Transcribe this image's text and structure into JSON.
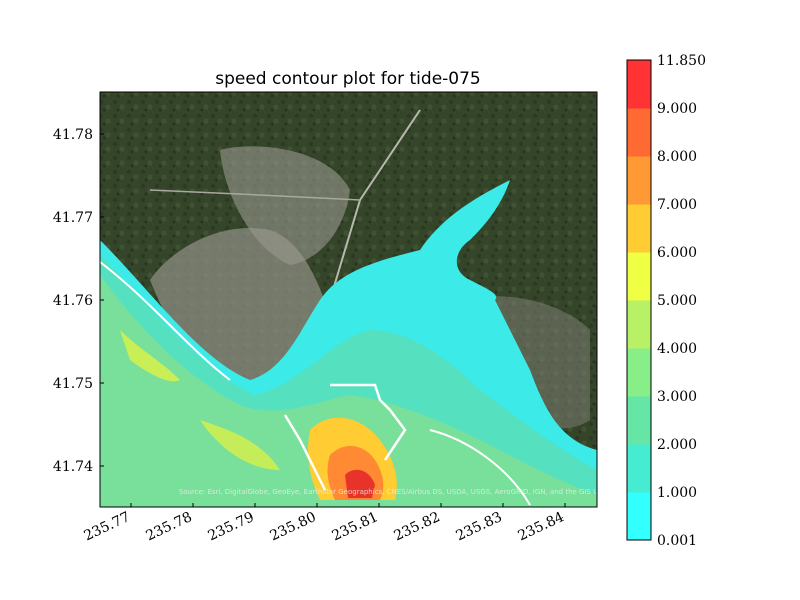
{
  "chart_data": {
    "type": "heatmap",
    "title": "speed contour plot for tide-075",
    "xlabel": "",
    "ylabel": "",
    "xlim": [
      235.765,
      235.845
    ],
    "ylim": [
      41.735,
      41.785
    ],
    "x_ticks": [
      "235.77",
      "235.78",
      "235.79",
      "235.80",
      "235.81",
      "235.82",
      "235.83",
      "235.84"
    ],
    "y_ticks": [
      "41.74",
      "41.75",
      "41.76",
      "41.77",
      "41.78"
    ],
    "basemap": "satellite imagery",
    "attribution": "Source: Esri, DigitalGlobe, GeoEye, Earthstar Geographics, CNES/Airbus DS, USDA, USGS, AeroGRID, IGN, and the GIS User Community, NGA, GEBCO",
    "colorbar": {
      "levels": [
        "0.001",
        "1.000",
        "2.000",
        "3.000",
        "4.000",
        "5.000",
        "6.000",
        "7.000",
        "8.000",
        "9.000",
        "11.850"
      ],
      "colors": [
        "#33ffff",
        "#45ecd2",
        "#66e6a6",
        "#88ee88",
        "#b8f066",
        "#eeff44",
        "#ffcc33",
        "#ff9933",
        "#ff6a33",
        "#ff3333"
      ]
    }
  },
  "colors": {
    "water_low": "#3fe8e6",
    "water_mid": "#5ee3b0",
    "water_green": "#7de39a",
    "water_high": "#e84a2a",
    "land": "#3b4a2e"
  }
}
